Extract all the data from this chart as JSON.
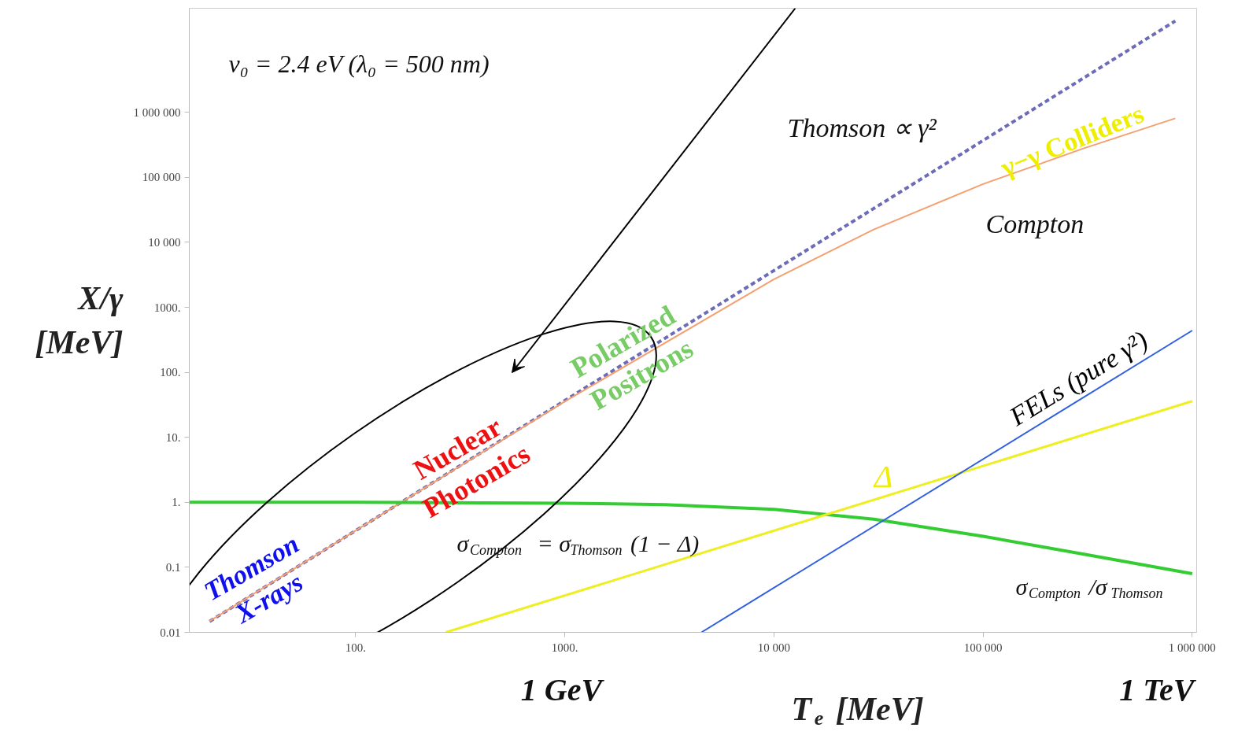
{
  "chart_data": {
    "type": "line",
    "xlabel": "T$_{e}$ [MeV]",
    "ylabel": "X/γ [MeV]",
    "log": "xy",
    "xlim": [
      16,
      1050000
    ],
    "ylim": [
      0.01,
      40000000
    ],
    "xticks": [
      {
        "value": 100,
        "label": "100."
      },
      {
        "value": 1000,
        "label": "1000."
      },
      {
        "value": 10000,
        "label": "10 000"
      },
      {
        "value": 100000,
        "label": "100 000"
      },
      {
        "value": 1000000,
        "label": "1 000 000"
      }
    ],
    "yticks": [
      {
        "value": 0.01,
        "label": "0.01"
      },
      {
        "value": 0.1,
        "label": "0.1"
      },
      {
        "value": 1,
        "label": "1."
      },
      {
        "value": 10,
        "label": "10."
      },
      {
        "value": 100,
        "label": "100."
      },
      {
        "value": 1000,
        "label": "1000."
      },
      {
        "value": 10000,
        "label": "10 000"
      },
      {
        "value": 100000,
        "label": "100 000"
      },
      {
        "value": 1000000,
        "label": "1 000 000"
      }
    ],
    "grid": false,
    "legend": false,
    "series": [
      {
        "name": "Thomson ∝ γ²",
        "color": "#6c6cb8",
        "line_style": "dashed",
        "x": [
          20,
          830000
        ],
        "values": [
          0.0147,
          25500000
        ]
      },
      {
        "name": "Compton",
        "color": "#f4a070",
        "x": [
          20,
          100,
          1000,
          10000,
          30000,
          100000,
          300000,
          830000
        ],
        "values": [
          0.0148,
          0.369,
          35.7,
          2705,
          15800,
          79000,
          277000,
          810000
        ]
      },
      {
        "name": "σ$_{Compton}$/σ$_{Thomson}$",
        "color": "#33cc33",
        "x": [
          16,
          100,
          1000,
          3000,
          10000,
          30000,
          100000,
          300000,
          1000000
        ],
        "values": [
          1,
          1,
          0.97,
          0.92,
          0.78,
          0.55,
          0.3,
          0.16,
          0.08
        ]
      },
      {
        "name": "Δ",
        "color": "#eeee22",
        "x": [
          270,
          1000000
        ],
        "values": [
          0.01,
          36
        ]
      },
      {
        "name": "FELs (pure γ²)",
        "color": "#3060e0",
        "x": [
          4500,
          1000000
        ],
        "values": [
          0.01,
          440
        ]
      }
    ],
    "annotations": [
      "ν₀ = 2.4  eV  (λ₀ = 500  nm)",
      "σ$_{Compton}$ = σ$_{Thomson}$(1 − Δ)",
      "Thomson\nX-rays",
      {
        "text": "Nuclear\nPhotonics",
        "x": 340,
        "y": 3.8
      },
      {
        "text": "Polarized\nPositrons",
        "x": 2100,
        "y": 166
      },
      "γ−γ Colliders",
      "1 GeV",
      "1 TeV"
    ]
  }
}
